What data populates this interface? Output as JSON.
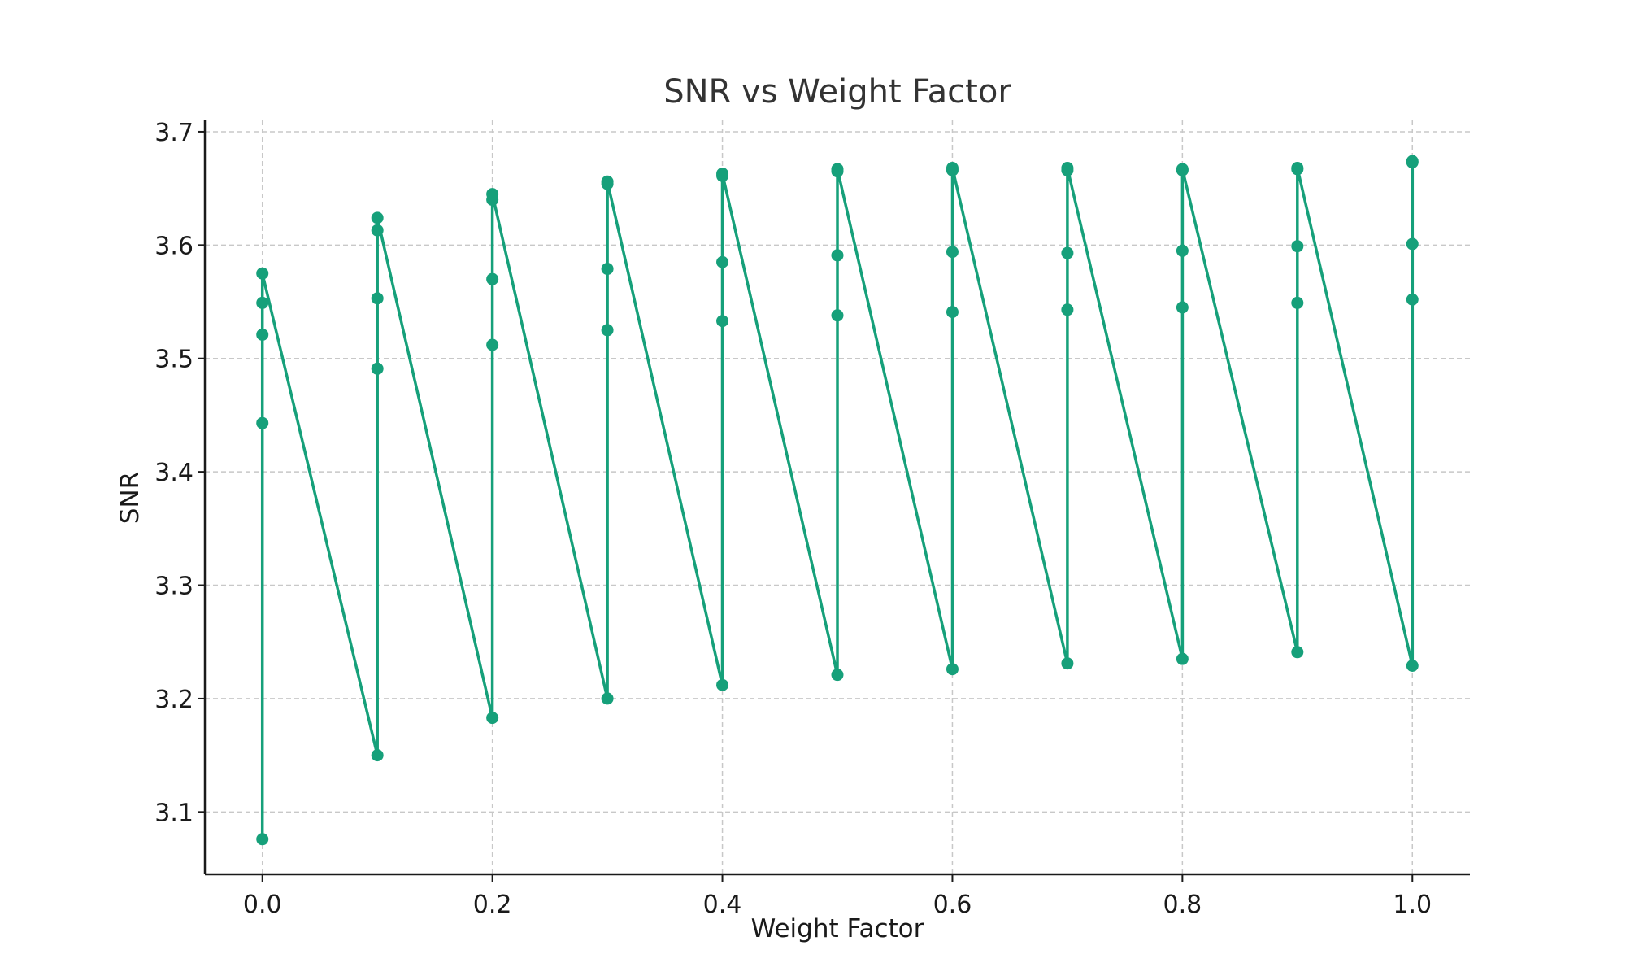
{
  "chart_data": {
    "type": "line",
    "title": "SNR vs Weight Factor",
    "xlabel": "Weight Factor",
    "ylabel": "SNR",
    "xlim": [
      -0.05,
      1.05
    ],
    "ylim": [
      3.045,
      3.71
    ],
    "xticks": [
      "0.0",
      "0.2",
      "0.4",
      "0.6",
      "0.8",
      "1.0"
    ],
    "yticks": [
      "3.1",
      "3.2",
      "3.3",
      "3.4",
      "3.5",
      "3.6",
      "3.7"
    ],
    "grid": true,
    "color": "#16a07a",
    "markers": true,
    "series": [
      {
        "name": "",
        "x": [
          0.0,
          0.0,
          0.0,
          0.0,
          0.0,
          0.1,
          0.1,
          0.1,
          0.1,
          0.1,
          0.2,
          0.2,
          0.2,
          0.2,
          0.2,
          0.3,
          0.3,
          0.3,
          0.3,
          0.3,
          0.4,
          0.4,
          0.4,
          0.4,
          0.4,
          0.5,
          0.5,
          0.5,
          0.5,
          0.5,
          0.6,
          0.6,
          0.6,
          0.6,
          0.6,
          0.7,
          0.7,
          0.7,
          0.7,
          0.7,
          0.8,
          0.8,
          0.8,
          0.8,
          0.8,
          0.9,
          0.9,
          0.9,
          0.9,
          0.9,
          1.0,
          1.0,
          1.0,
          1.0,
          1.0
        ],
        "y": [
          3.076,
          3.443,
          3.521,
          3.549,
          3.575,
          3.15,
          3.491,
          3.553,
          3.613,
          3.624,
          3.183,
          3.512,
          3.57,
          3.64,
          3.645,
          3.2,
          3.525,
          3.579,
          3.654,
          3.656,
          3.212,
          3.533,
          3.585,
          3.661,
          3.663,
          3.221,
          3.538,
          3.591,
          3.665,
          3.667,
          3.226,
          3.541,
          3.594,
          3.666,
          3.668,
          3.231,
          3.543,
          3.593,
          3.666,
          3.668,
          3.235,
          3.545,
          3.595,
          3.666,
          3.667,
          3.241,
          3.549,
          3.599,
          3.667,
          3.668,
          3.229,
          3.552,
          3.601,
          3.673,
          3.674
        ]
      }
    ]
  }
}
